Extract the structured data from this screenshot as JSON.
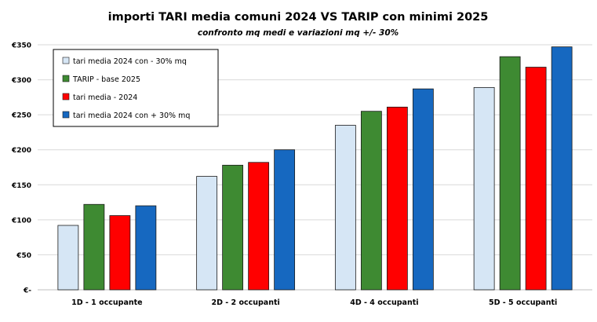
{
  "chart_data": {
    "type": "bar",
    "title": "importi TARI media comuni 2024 VS TARIP con minimi 2025",
    "subtitle": "confronto mq medi e variazioni mq +/- 30%",
    "xlabel": "",
    "ylabel": "",
    "categories": [
      "1D - 1 occupante",
      "2D - 2 occupanti",
      "4D - 4 occupanti",
      "5D - 5 occupanti"
    ],
    "y_ticks": [
      {
        "value": 0,
        "label": "€-"
      },
      {
        "value": 50,
        "label": "€50"
      },
      {
        "value": 100,
        "label": "€100"
      },
      {
        "value": 150,
        "label": "€150"
      },
      {
        "value": 200,
        "label": "€200"
      },
      {
        "value": 250,
        "label": "€250"
      },
      {
        "value": 300,
        "label": "€300"
      },
      {
        "value": 350,
        "label": "€350"
      }
    ],
    "ylim": [
      0,
      350
    ],
    "grid": true,
    "legend_position": "top-left",
    "series": [
      {
        "name": "tari media 2024 con - 30% mq",
        "color": "#d6e6f5",
        "values": [
          92,
          162,
          235,
          289
        ]
      },
      {
        "name": "TARIP - base 2025",
        "color": "#3e8a32",
        "values": [
          122,
          178,
          255,
          333
        ]
      },
      {
        "name": "tari media - 2024",
        "color": "#ff0000",
        "values": [
          106,
          182,
          261,
          318
        ]
      },
      {
        "name": "tari media 2024 con + 30% mq",
        "color": "#1668c0",
        "values": [
          120,
          200,
          287,
          347
        ]
      }
    ]
  }
}
